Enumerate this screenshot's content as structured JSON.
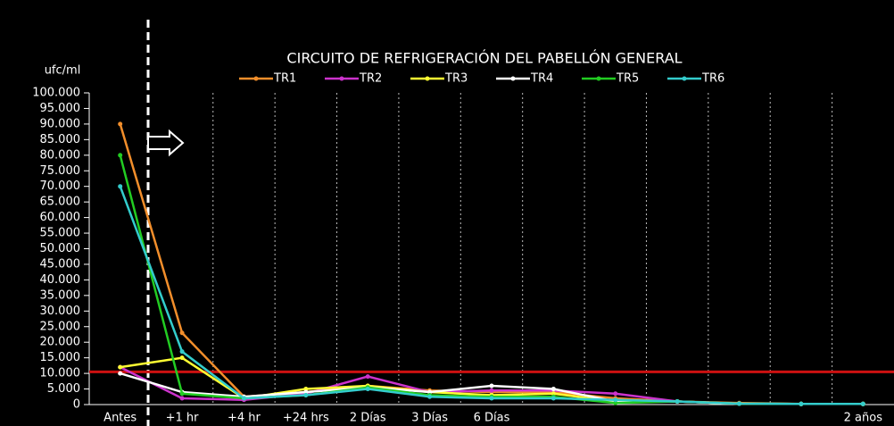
{
  "chart_data": {
    "type": "line",
    "title": "CIRCUITO DE REFRIGERACIÓN DEL PABELLÓN GENERAL",
    "y_label": "ufc/ml",
    "categories": [
      "Antes",
      "+1 hr",
      "+4 hr",
      "+24 hrs",
      "2 Días",
      "3 Días",
      "6 Días",
      null,
      null,
      null,
      null,
      null,
      "2 años"
    ],
    "series": [
      {
        "name": "TR1",
        "color": "#f28e2b",
        "values": [
          90000,
          23000,
          2500,
          4000,
          6000,
          4500,
          4000,
          4000,
          2000,
          1000,
          500,
          200,
          200
        ]
      },
      {
        "name": "TR2",
        "color": "#cc33cc",
        "values": [
          12000,
          2000,
          1500,
          3500,
          9000,
          4000,
          4500,
          4500,
          3500,
          1000,
          300,
          200,
          200
        ]
      },
      {
        "name": "TR3",
        "color": "#ffff33",
        "values": [
          12000,
          15000,
          2000,
          5000,
          6000,
          4000,
          3000,
          3500,
          1000,
          1000,
          300,
          200,
          200
        ]
      },
      {
        "name": "TR4",
        "color": "#ffffff",
        "values": [
          10000,
          4000,
          2500,
          4000,
          5500,
          4000,
          6000,
          5000,
          1000,
          1000,
          300,
          200,
          200
        ]
      },
      {
        "name": "TR5",
        "color": "#22cc22",
        "values": [
          80000,
          3500,
          2000,
          3000,
          5500,
          3000,
          2500,
          2500,
          500,
          1000,
          300,
          200,
          200
        ]
      },
      {
        "name": "TR6",
        "color": "#33cccc",
        "values": [
          70000,
          17000,
          2000,
          3000,
          5000,
          2500,
          2000,
          2000,
          1500,
          1000,
          300,
          200,
          200
        ]
      }
    ],
    "reference_line": {
      "value": 10500,
      "color": "#cc1111"
    },
    "ylim": [
      0,
      100000
    ],
    "yticks": [
      0,
      {
        "value": 5000,
        "label": "5.000"
      },
      {
        "value": 10000,
        "label": "10.000"
      },
      {
        "value": 15000,
        "label": "15.000"
      },
      {
        "value": 20000,
        "label": "20.000"
      },
      {
        "value": 25000,
        "label": "25.000"
      },
      {
        "value": 30000,
        "label": "30.000"
      },
      {
        "value": 35000,
        "label": "35.000"
      },
      {
        "value": 40000,
        "label": "40.000"
      },
      {
        "value": 45000,
        "label": "45.000"
      },
      {
        "value": 50000,
        "label": "50.000"
      },
      {
        "value": 55000,
        "label": "55.000"
      },
      {
        "value": 60000,
        "label": "60.000"
      },
      {
        "value": 65000,
        "label": "65.000"
      },
      {
        "value": 70000,
        "label": "70.000"
      },
      {
        "value": 75000,
        "label": "75.000"
      },
      {
        "value": 80000,
        "label": "80.000"
      },
      {
        "value": 85000,
        "label": "85.000"
      },
      {
        "value": 90000,
        "label": "90.000"
      },
      {
        "value": 95000,
        "label": "95.000"
      },
      {
        "value": 100000,
        "label": "100.000"
      }
    ]
  }
}
